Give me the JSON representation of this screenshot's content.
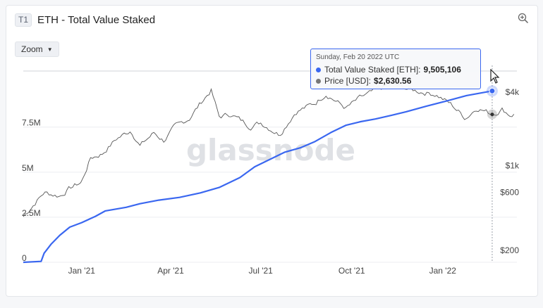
{
  "header": {
    "tag": "T1",
    "title": "ETH - Total Value Staked"
  },
  "toolbar": {
    "zoom_label": "Zoom",
    "zoom_icon": "zoom-in-icon"
  },
  "watermark": "glassnode",
  "tooltip": {
    "date": "Sunday, Feb 20 2022 UTC",
    "series1_label": "Total Value Staked [ETH]:",
    "series1_value": "9,505,106",
    "series2_label": "Price [USD]:",
    "series2_value": "$2,630.56"
  },
  "chart_data": {
    "type": "line",
    "x_ticks": [
      "Jan '21",
      "Apr '21",
      "Jul '21",
      "Oct '21",
      "Jan '22"
    ],
    "y_left_ticks": [
      "0",
      "2.5M",
      "5M",
      "7.5M"
    ],
    "y_right_ticks": [
      "$200",
      "$600",
      "$1k",
      "$4k"
    ],
    "y_left_scale": "linear",
    "y_right_scale": "log",
    "grid": true,
    "colors": {
      "staked": "#3a67f0",
      "price": "#555555",
      "tooltip_border": "#3a67f0"
    },
    "series": [
      {
        "name": "Total Value Staked [ETH]",
        "axis": "left",
        "points": [
          [
            "2020-11-03",
            0
          ],
          [
            "2020-11-21",
            50000
          ],
          [
            "2020-11-24",
            500000
          ],
          [
            "2020-12-01",
            1000000
          ],
          [
            "2020-12-10",
            1500000
          ],
          [
            "2020-12-20",
            1950000
          ],
          [
            "2021-01-01",
            2200000
          ],
          [
            "2021-01-15",
            2550000
          ],
          [
            "2021-01-25",
            2850000
          ],
          [
            "2021-02-15",
            3050000
          ],
          [
            "2021-03-01",
            3250000
          ],
          [
            "2021-03-20",
            3450000
          ],
          [
            "2021-04-10",
            3600000
          ],
          [
            "2021-05-01",
            3850000
          ],
          [
            "2021-05-20",
            4150000
          ],
          [
            "2021-06-10",
            4700000
          ],
          [
            "2021-06-25",
            5300000
          ],
          [
            "2021-07-10",
            5700000
          ],
          [
            "2021-07-25",
            6100000
          ],
          [
            "2021-08-10",
            6350000
          ],
          [
            "2021-08-25",
            6700000
          ],
          [
            "2021-09-10",
            7200000
          ],
          [
            "2021-09-25",
            7600000
          ],
          [
            "2021-10-10",
            7800000
          ],
          [
            "2021-10-25",
            7950000
          ],
          [
            "2021-11-10",
            8150000
          ],
          [
            "2021-11-25",
            8350000
          ],
          [
            "2021-12-15",
            8650000
          ],
          [
            "2022-01-05",
            8950000
          ],
          [
            "2022-01-25",
            9250000
          ],
          [
            "2022-02-20",
            9505106
          ]
        ]
      },
      {
        "name": "Price [USD]",
        "axis": "right",
        "points": [
          [
            "2020-11-03",
            380
          ],
          [
            "2020-11-24",
            600
          ],
          [
            "2020-12-10",
            560
          ],
          [
            "2020-12-20",
            650
          ],
          [
            "2021-01-01",
            730
          ],
          [
            "2021-01-10",
            1150
          ],
          [
            "2021-01-22",
            1250
          ],
          [
            "2021-02-05",
            1650
          ],
          [
            "2021-02-20",
            1950
          ],
          [
            "2021-03-01",
            1450
          ],
          [
            "2021-03-15",
            1850
          ],
          [
            "2021-03-25",
            1600
          ],
          [
            "2021-04-05",
            2050
          ],
          [
            "2021-04-20",
            2450
          ],
          [
            "2021-05-03",
            3400
          ],
          [
            "2021-05-12",
            4150
          ],
          [
            "2021-05-20",
            2500
          ],
          [
            "2021-06-01",
            2650
          ],
          [
            "2021-06-20",
            2100
          ],
          [
            "2021-07-01",
            2250
          ],
          [
            "2021-07-20",
            1800
          ],
          [
            "2021-08-05",
            2750
          ],
          [
            "2021-08-25",
            3250
          ],
          [
            "2021-09-05",
            3900
          ],
          [
            "2021-09-25",
            2950
          ],
          [
            "2021-10-10",
            3600
          ],
          [
            "2021-10-25",
            4100
          ],
          [
            "2021-11-10",
            4700
          ],
          [
            "2021-11-25",
            4300
          ],
          [
            "2021-12-05",
            4100
          ],
          [
            "2021-12-25",
            3850
          ],
          [
            "2022-01-10",
            3150
          ],
          [
            "2022-01-24",
            2450
          ],
          [
            "2022-02-05",
            3000
          ],
          [
            "2022-02-20",
            2630.56
          ],
          [
            "2022-03-02",
            2900
          ],
          [
            "2022-03-10",
            2600
          ],
          [
            "2022-03-15",
            2650
          ]
        ]
      }
    ]
  }
}
